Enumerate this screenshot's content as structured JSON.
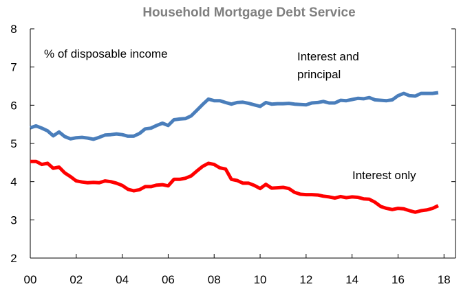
{
  "chart_data": {
    "type": "line",
    "title": "Household Mortgage Debt Service",
    "ylabel_note": "% of disposable income",
    "xlabel": "",
    "ylabel": "",
    "xlim": [
      2000,
      2018.5
    ],
    "ylim": [
      2,
      8
    ],
    "yticks": [
      2,
      3,
      4,
      5,
      6,
      7,
      8
    ],
    "ytick_labels": [
      "2",
      "3",
      "4",
      "5",
      "6",
      "7",
      "8"
    ],
    "xticks": [
      2000,
      2002,
      2004,
      2006,
      2008,
      2010,
      2012,
      2014,
      2016,
      2018
    ],
    "xtick_labels": [
      "00",
      "02",
      "04",
      "06",
      "08",
      "10",
      "12",
      "14",
      "16",
      "18"
    ],
    "grid": false,
    "series": [
      {
        "name": "Interest and principal",
        "label_lines": [
          "Interest and",
          "principal"
        ],
        "color": "#4a7ebb",
        "x": [
          2000.0,
          2000.25,
          2000.5,
          2000.75,
          2001.0,
          2001.25,
          2001.5,
          2001.75,
          2002.0,
          2002.25,
          2002.5,
          2002.75,
          2003.0,
          2003.25,
          2003.5,
          2003.75,
          2004.0,
          2004.25,
          2004.5,
          2004.75,
          2005.0,
          2005.25,
          2005.5,
          2005.75,
          2006.0,
          2006.25,
          2006.5,
          2006.75,
          2007.0,
          2007.25,
          2007.5,
          2007.75,
          2008.0,
          2008.25,
          2008.5,
          2008.75,
          2009.0,
          2009.25,
          2009.5,
          2009.75,
          2010.0,
          2010.25,
          2010.5,
          2010.75,
          2011.0,
          2011.25,
          2011.5,
          2011.75,
          2012.0,
          2012.25,
          2012.5,
          2012.75,
          2013.0,
          2013.25,
          2013.5,
          2013.75,
          2014.0,
          2014.25,
          2014.5,
          2014.75,
          2015.0,
          2015.25,
          2015.5,
          2015.75,
          2016.0,
          2016.25,
          2016.5,
          2016.75,
          2017.0,
          2017.25,
          2017.5,
          2017.75
        ],
        "values": [
          5.41,
          5.46,
          5.4,
          5.33,
          5.2,
          5.3,
          5.18,
          5.12,
          5.15,
          5.16,
          5.14,
          5.11,
          5.16,
          5.22,
          5.23,
          5.25,
          5.23,
          5.19,
          5.19,
          5.26,
          5.38,
          5.4,
          5.47,
          5.53,
          5.47,
          5.62,
          5.64,
          5.65,
          5.72,
          5.87,
          6.02,
          6.16,
          6.12,
          6.12,
          6.07,
          6.03,
          6.07,
          6.08,
          6.05,
          6.01,
          5.97,
          6.07,
          6.03,
          6.04,
          6.04,
          6.05,
          6.03,
          6.02,
          6.01,
          6.06,
          6.07,
          6.1,
          6.06,
          6.06,
          6.13,
          6.12,
          6.15,
          6.18,
          6.17,
          6.2,
          6.14,
          6.13,
          6.12,
          6.14,
          6.25,
          6.31,
          6.25,
          6.24,
          6.31,
          6.31,
          6.31,
          6.33
        ]
      },
      {
        "name": "Interest only",
        "color": "#ff0000",
        "x": [
          2000.0,
          2000.25,
          2000.5,
          2000.75,
          2001.0,
          2001.25,
          2001.5,
          2001.75,
          2002.0,
          2002.25,
          2002.5,
          2002.75,
          2003.0,
          2003.25,
          2003.5,
          2003.75,
          2004.0,
          2004.25,
          2004.5,
          2004.75,
          2005.0,
          2005.25,
          2005.5,
          2005.75,
          2006.0,
          2006.25,
          2006.5,
          2006.75,
          2007.0,
          2007.25,
          2007.5,
          2007.75,
          2008.0,
          2008.25,
          2008.5,
          2008.75,
          2009.0,
          2009.25,
          2009.5,
          2009.75,
          2010.0,
          2010.25,
          2010.5,
          2010.75,
          2011.0,
          2011.25,
          2011.5,
          2011.75,
          2012.0,
          2012.25,
          2012.5,
          2012.75,
          2013.0,
          2013.25,
          2013.5,
          2013.75,
          2014.0,
          2014.25,
          2014.5,
          2014.75,
          2015.0,
          2015.25,
          2015.5,
          2015.75,
          2016.0,
          2016.25,
          2016.5,
          2016.75,
          2017.0,
          2017.25,
          2017.5,
          2017.75
        ],
        "values": [
          4.53,
          4.53,
          4.45,
          4.48,
          4.35,
          4.38,
          4.23,
          4.13,
          4.02,
          3.99,
          3.97,
          3.98,
          3.97,
          4.02,
          4.0,
          3.96,
          3.9,
          3.8,
          3.76,
          3.79,
          3.87,
          3.87,
          3.91,
          3.92,
          3.89,
          4.06,
          4.06,
          4.09,
          4.15,
          4.28,
          4.4,
          4.48,
          4.45,
          4.36,
          4.33,
          4.06,
          4.03,
          3.96,
          3.96,
          3.9,
          3.82,
          3.93,
          3.83,
          3.84,
          3.85,
          3.82,
          3.72,
          3.67,
          3.66,
          3.66,
          3.65,
          3.62,
          3.6,
          3.57,
          3.61,
          3.58,
          3.6,
          3.59,
          3.55,
          3.54,
          3.46,
          3.35,
          3.3,
          3.27,
          3.3,
          3.29,
          3.24,
          3.2,
          3.24,
          3.26,
          3.3,
          3.37
        ]
      }
    ]
  }
}
